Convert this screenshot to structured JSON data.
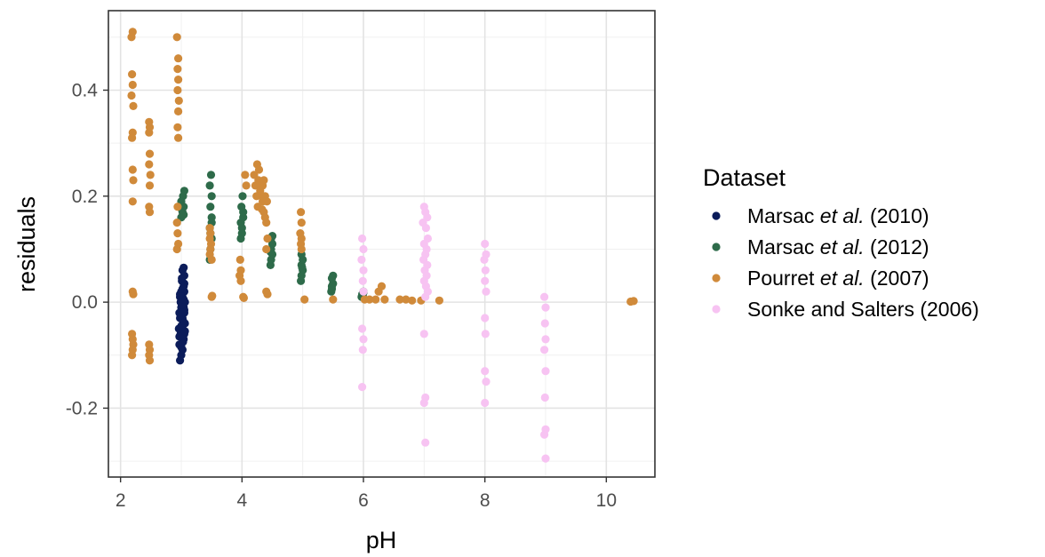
{
  "chart_data": {
    "type": "scatter",
    "title": "",
    "xlabel": "pH",
    "ylabel": "residuals",
    "xlim": [
      1.8,
      10.8
    ],
    "ylim": [
      -0.33,
      0.55
    ],
    "x_ticks": [
      2,
      4,
      6,
      8,
      10
    ],
    "y_ticks": [
      -0.2,
      0.0,
      0.2,
      0.4
    ],
    "x_tick_labels": [
      "2",
      "4",
      "6",
      "8",
      "10"
    ],
    "y_tick_labels": [
      "-0.2",
      "0.0",
      "0.2",
      "0.4"
    ],
    "grid": true,
    "legend_position": "right",
    "legend": {
      "title": "Dataset",
      "entries": [
        {
          "pre": "Marsac ",
          "italic": "et al.",
          "post": " (2010)"
        },
        {
          "pre": "Marsac ",
          "italic": "et al.",
          "post": " (2012)"
        },
        {
          "pre": "Pourret ",
          "italic": "et al.",
          "post": " (2007)"
        },
        {
          "pre": "Sonke and Salters (2006)",
          "italic": "",
          "post": ""
        }
      ]
    },
    "series": [
      {
        "name": "Marsac et al. (2010)",
        "color": "#0b1c5a",
        "points": [
          [
            2.98,
            -0.11
          ],
          [
            3.0,
            -0.1
          ],
          [
            3.02,
            -0.09
          ],
          [
            2.97,
            -0.08
          ],
          [
            3.04,
            -0.07
          ],
          [
            2.99,
            -0.06
          ],
          [
            3.05,
            -0.06
          ],
          [
            3.01,
            -0.05
          ],
          [
            2.96,
            -0.05
          ],
          [
            3.03,
            -0.04
          ],
          [
            3.06,
            -0.04
          ],
          [
            2.98,
            -0.03
          ],
          [
            3.02,
            -0.03
          ],
          [
            3.05,
            -0.02
          ],
          [
            2.97,
            -0.02
          ],
          [
            3.0,
            -0.01
          ],
          [
            3.04,
            -0.01
          ],
          [
            2.99,
            0.0
          ],
          [
            3.03,
            0.0
          ],
          [
            3.06,
            0.0
          ],
          [
            2.98,
            0.01
          ],
          [
            3.02,
            0.01
          ],
          [
            3.05,
            0.02
          ],
          [
            3.0,
            0.02
          ],
          [
            3.04,
            0.03
          ],
          [
            3.01,
            0.04
          ],
          [
            3.05,
            0.05
          ],
          [
            3.02,
            0.06
          ],
          [
            3.04,
            0.065
          ],
          [
            3.0,
            -0.085
          ],
          [
            3.03,
            -0.075
          ],
          [
            2.97,
            -0.065
          ],
          [
            3.06,
            -0.055
          ],
          [
            3.0,
            -0.045
          ],
          [
            3.03,
            -0.035
          ],
          [
            2.99,
            -0.025
          ],
          [
            3.05,
            -0.015
          ],
          [
            3.01,
            -0.005
          ],
          [
            3.04,
            0.005
          ],
          [
            2.98,
            0.015
          ],
          [
            3.02,
            0.025
          ],
          [
            3.05,
            0.035
          ],
          [
            3.01,
            0.045
          ]
        ]
      },
      {
        "name": "Marsac et al. (2012)",
        "color": "#2e6b4a",
        "points": [
          [
            3.0,
            0.16
          ],
          [
            3.02,
            0.17
          ],
          [
            3.04,
            0.18
          ],
          [
            3.0,
            0.19
          ],
          [
            3.03,
            0.2
          ],
          [
            3.05,
            0.21
          ],
          [
            3.01,
            0.175
          ],
          [
            3.04,
            0.165
          ],
          [
            3.47,
            0.08
          ],
          [
            3.48,
            0.1
          ],
          [
            3.5,
            0.12
          ],
          [
            3.47,
            0.14
          ],
          [
            3.5,
            0.16
          ],
          [
            3.48,
            0.18
          ],
          [
            3.5,
            0.2
          ],
          [
            3.47,
            0.22
          ],
          [
            3.49,
            0.24
          ],
          [
            3.5,
            0.15
          ],
          [
            3.48,
            0.13
          ],
          [
            3.98,
            0.12
          ],
          [
            4.0,
            0.14
          ],
          [
            4.02,
            0.16
          ],
          [
            3.99,
            0.18
          ],
          [
            4.01,
            0.2
          ],
          [
            4.0,
            0.13
          ],
          [
            4.02,
            0.17
          ],
          [
            3.98,
            0.15
          ],
          [
            4.47,
            0.07
          ],
          [
            4.48,
            0.08
          ],
          [
            4.5,
            0.09
          ],
          [
            4.48,
            0.1
          ],
          [
            4.5,
            0.11
          ],
          [
            4.48,
            0.12
          ],
          [
            4.5,
            0.125
          ],
          [
            4.47,
            0.095
          ],
          [
            4.97,
            0.04
          ],
          [
            4.98,
            0.05
          ],
          [
            5.0,
            0.06
          ],
          [
            4.98,
            0.07
          ],
          [
            5.0,
            0.08
          ],
          [
            4.98,
            0.09
          ],
          [
            4.99,
            0.065
          ],
          [
            5.47,
            0.02
          ],
          [
            5.48,
            0.03
          ],
          [
            5.5,
            0.035
          ],
          [
            5.48,
            0.045
          ],
          [
            5.5,
            0.05
          ],
          [
            5.48,
            0.025
          ],
          [
            5.97,
            0.01
          ],
          [
            5.98,
            0.015
          ],
          [
            6.0,
            0.02
          ],
          [
            5.99,
            0.012
          ],
          [
            6.0,
            0.018
          ]
        ]
      },
      {
        "name": "Pourret et al. (2007)",
        "color": "#d08a3a",
        "points": [
          [
            2.18,
            0.5
          ],
          [
            2.2,
            0.51
          ],
          [
            2.19,
            0.43
          ],
          [
            2.2,
            0.41
          ],
          [
            2.18,
            0.39
          ],
          [
            2.21,
            0.37
          ],
          [
            2.2,
            0.32
          ],
          [
            2.19,
            0.31
          ],
          [
            2.2,
            0.25
          ],
          [
            2.21,
            0.23
          ],
          [
            2.2,
            0.19
          ],
          [
            2.2,
            0.02
          ],
          [
            2.21,
            0.015
          ],
          [
            2.19,
            -0.06
          ],
          [
            2.2,
            -0.07
          ],
          [
            2.21,
            -0.08
          ],
          [
            2.2,
            -0.09
          ],
          [
            2.19,
            -0.1
          ],
          [
            2.47,
            0.34
          ],
          [
            2.48,
            0.33
          ],
          [
            2.47,
            0.32
          ],
          [
            2.48,
            0.28
          ],
          [
            2.47,
            0.26
          ],
          [
            2.49,
            0.24
          ],
          [
            2.48,
            0.22
          ],
          [
            2.47,
            0.18
          ],
          [
            2.48,
            0.17
          ],
          [
            2.47,
            -0.08
          ],
          [
            2.48,
            -0.09
          ],
          [
            2.47,
            -0.1
          ],
          [
            2.48,
            -0.11
          ],
          [
            2.93,
            0.5
          ],
          [
            2.95,
            0.46
          ],
          [
            2.94,
            0.44
          ],
          [
            2.95,
            0.42
          ],
          [
            2.94,
            0.4
          ],
          [
            2.96,
            0.38
          ],
          [
            2.95,
            0.36
          ],
          [
            2.94,
            0.33
          ],
          [
            2.95,
            0.31
          ],
          [
            2.94,
            0.18
          ],
          [
            2.93,
            0.15
          ],
          [
            2.94,
            0.13
          ],
          [
            2.95,
            0.11
          ],
          [
            2.93,
            0.1
          ],
          [
            3.47,
            0.14
          ],
          [
            3.48,
            0.13
          ],
          [
            3.47,
            0.12
          ],
          [
            3.49,
            0.11
          ],
          [
            3.48,
            0.1
          ],
          [
            3.47,
            0.09
          ],
          [
            3.5,
            0.08
          ],
          [
            3.5,
            0.01
          ],
          [
            3.51,
            0.012
          ],
          [
            3.97,
            0.08
          ],
          [
            3.98,
            0.06
          ],
          [
            3.96,
            0.05
          ],
          [
            3.98,
            0.04
          ],
          [
            4.02,
            0.01
          ],
          [
            4.03,
            0.008
          ],
          [
            4.05,
            0.24
          ],
          [
            4.07,
            0.22
          ],
          [
            4.2,
            0.24
          ],
          [
            4.22,
            0.22
          ],
          [
            4.24,
            0.2
          ],
          [
            4.26,
            0.18
          ],
          [
            4.25,
            0.26
          ],
          [
            4.27,
            0.23
          ],
          [
            4.3,
            0.22
          ],
          [
            4.32,
            0.2
          ],
          [
            4.34,
            0.19
          ],
          [
            4.36,
            0.17
          ],
          [
            4.38,
            0.16
          ],
          [
            4.4,
            0.15
          ],
          [
            4.3,
            0.21
          ],
          [
            4.34,
            0.22
          ],
          [
            4.28,
            0.25
          ],
          [
            4.33,
            0.175
          ],
          [
            4.38,
            0.2
          ],
          [
            4.41,
            0.19
          ],
          [
            4.36,
            0.23
          ],
          [
            4.4,
            0.02
          ],
          [
            4.42,
            0.015
          ],
          [
            4.4,
            0.1
          ],
          [
            4.42,
            0.12
          ],
          [
            4.97,
            0.17
          ],
          [
            4.98,
            0.15
          ],
          [
            4.96,
            0.13
          ],
          [
            4.98,
            0.12
          ],
          [
            4.97,
            0.11
          ],
          [
            4.98,
            0.1
          ],
          [
            5.03,
            0.005
          ],
          [
            5.5,
            0.005
          ],
          [
            6.02,
            0.005
          ],
          [
            6.1,
            0.005
          ],
          [
            6.2,
            0.005
          ],
          [
            6.25,
            0.02
          ],
          [
            6.3,
            0.03
          ],
          [
            6.35,
            0.005
          ],
          [
            6.6,
            0.005
          ],
          [
            6.7,
            0.005
          ],
          [
            6.8,
            0.003
          ],
          [
            6.95,
            0.003
          ],
          [
            7.25,
            0.003
          ],
          [
            10.4,
            0.001
          ],
          [
            10.45,
            0.002
          ]
        ]
      },
      {
        "name": "Sonke and Salters (2006)",
        "color": "#f7c3f2",
        "points": [
          [
            5.98,
            0.12
          ],
          [
            6.0,
            0.1
          ],
          [
            5.97,
            0.08
          ],
          [
            6.0,
            0.06
          ],
          [
            5.99,
            0.04
          ],
          [
            6.0,
            0.02
          ],
          [
            5.98,
            -0.05
          ],
          [
            6.0,
            -0.07
          ],
          [
            5.99,
            -0.09
          ],
          [
            5.98,
            -0.16
          ],
          [
            7.0,
            0.18
          ],
          [
            7.02,
            0.17
          ],
          [
            7.05,
            0.16
          ],
          [
            6.98,
            0.15
          ],
          [
            7.03,
            0.14
          ],
          [
            7.06,
            0.12
          ],
          [
            7.0,
            0.11
          ],
          [
            7.04,
            0.1
          ],
          [
            7.02,
            0.09
          ],
          [
            6.99,
            0.08
          ],
          [
            7.05,
            0.07
          ],
          [
            7.01,
            0.06
          ],
          [
            7.04,
            0.05
          ],
          [
            7.0,
            0.04
          ],
          [
            7.03,
            0.03
          ],
          [
            7.06,
            0.02
          ],
          [
            7.02,
            0.01
          ],
          [
            7.0,
            -0.06
          ],
          [
            7.02,
            -0.18
          ],
          [
            7.0,
            -0.19
          ],
          [
            7.02,
            -0.265
          ],
          [
            8.0,
            0.11
          ],
          [
            8.02,
            0.09
          ],
          [
            7.99,
            0.08
          ],
          [
            8.01,
            0.06
          ],
          [
            8.0,
            0.04
          ],
          [
            8.02,
            0.02
          ],
          [
            8.0,
            -0.03
          ],
          [
            8.01,
            -0.06
          ],
          [
            8.0,
            -0.13
          ],
          [
            8.02,
            -0.15
          ],
          [
            8.0,
            -0.19
          ],
          [
            8.98,
            0.01
          ],
          [
            9.0,
            -0.01
          ],
          [
            8.99,
            -0.04
          ],
          [
            9.0,
            -0.07
          ],
          [
            8.98,
            -0.09
          ],
          [
            9.0,
            -0.13
          ],
          [
            8.99,
            -0.18
          ],
          [
            9.0,
            -0.24
          ],
          [
            8.98,
            -0.25
          ],
          [
            9.0,
            -0.295
          ]
        ]
      }
    ]
  }
}
